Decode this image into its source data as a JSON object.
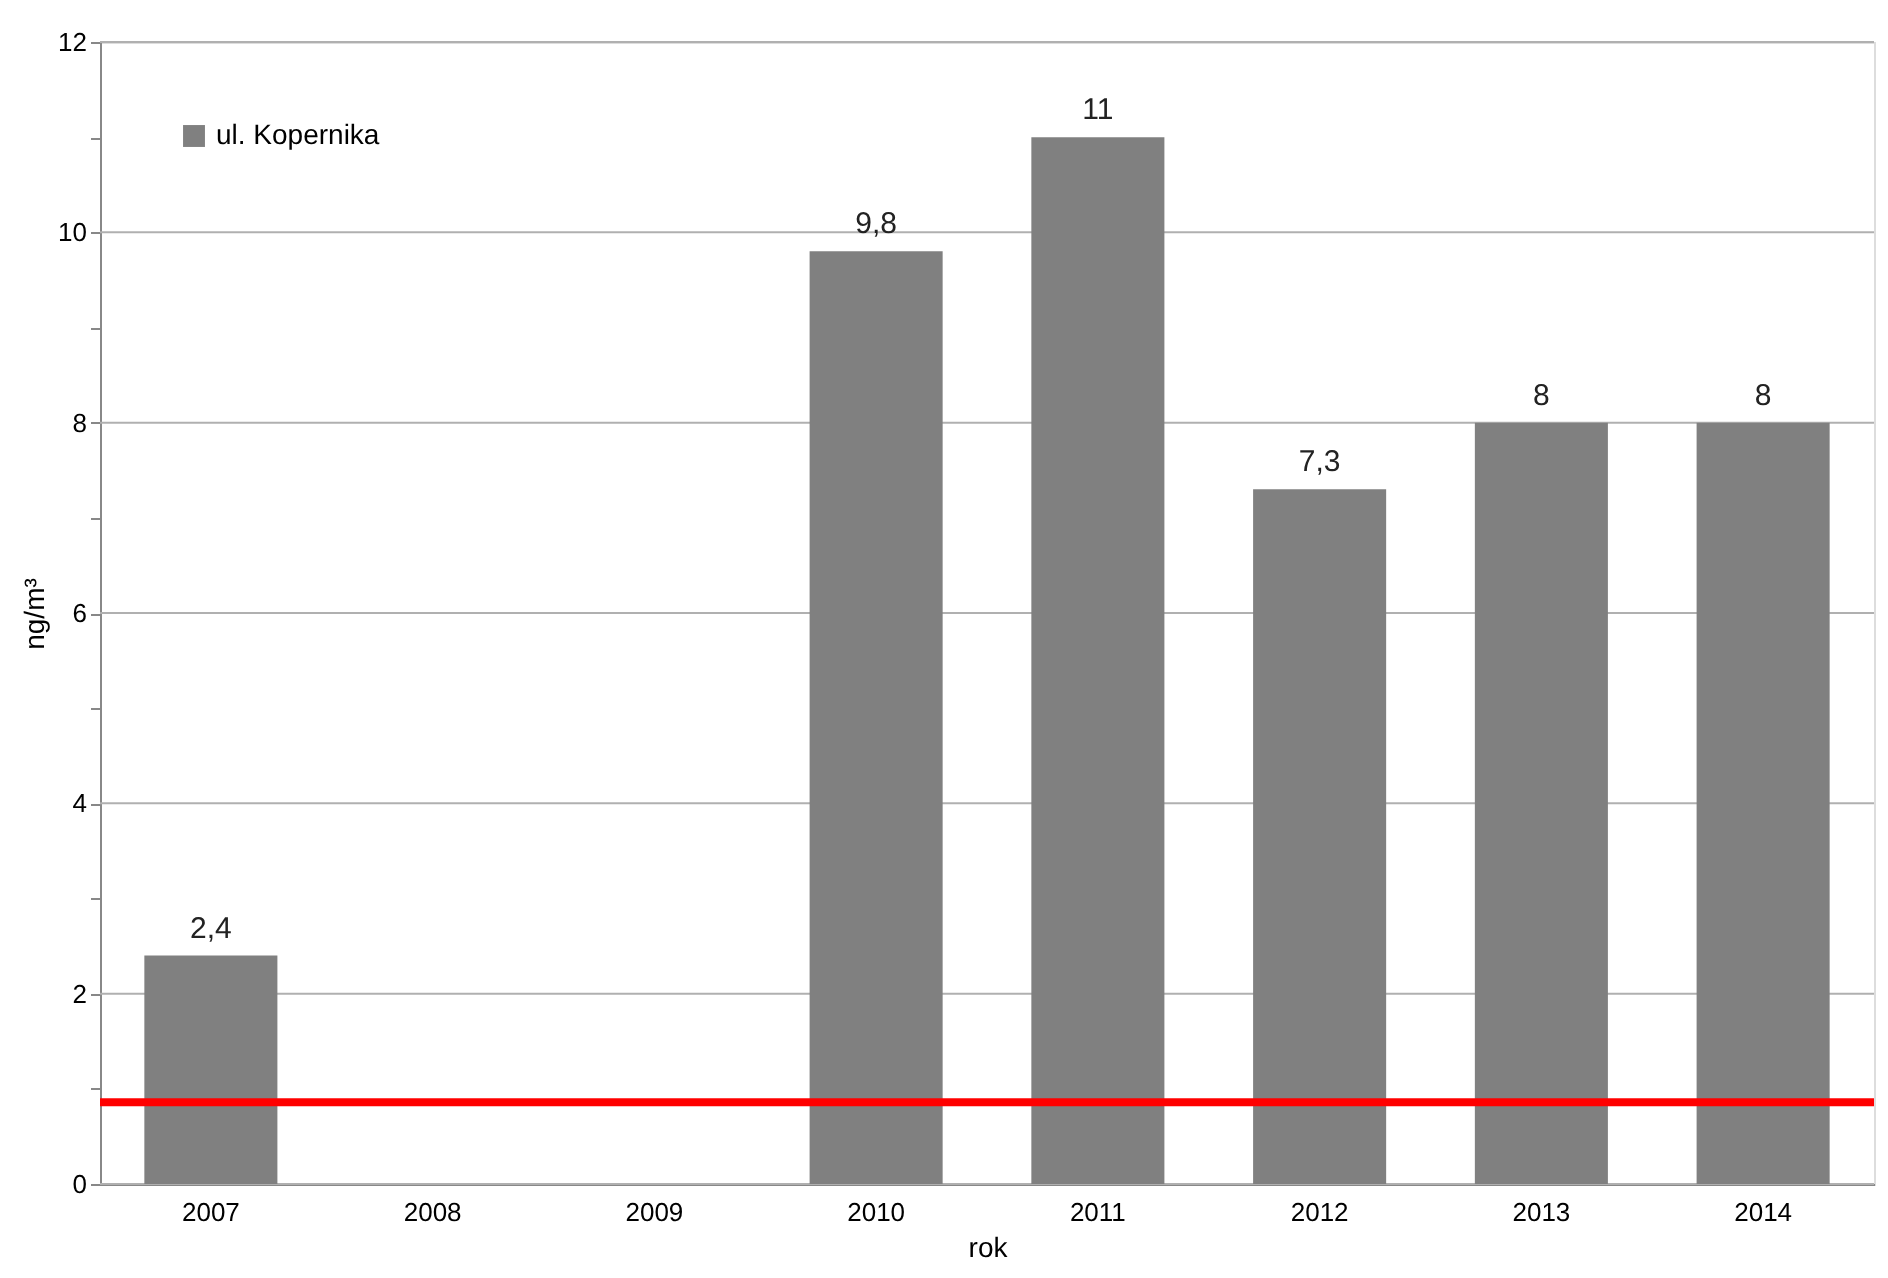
{
  "chart_data": {
    "type": "bar",
    "xlabel": "rok",
    "ylabel": "ng/m³",
    "categories": [
      "2007",
      "2008",
      "2009",
      "2010",
      "2011",
      "2012",
      "2013",
      "2014"
    ],
    "series": [
      {
        "name": "ul. Kopernika",
        "color": "#808080",
        "values": [
          2.4,
          null,
          null,
          9.8,
          11,
          7.3,
          8,
          8
        ],
        "value_labels": [
          "2,4",
          null,
          null,
          "9,8",
          "11",
          "7,3",
          "8",
          "8"
        ]
      }
    ],
    "ylim": [
      0,
      12
    ],
    "yticks": [
      0,
      {
        "value": 1,
        "label": null
      },
      2,
      {
        "value": 3,
        "label": null
      },
      4,
      {
        "value": 5,
        "label": null
      },
      6,
      {
        "value": 7,
        "label": null
      },
      8,
      {
        "value": 9,
        "label": null
      },
      10,
      {
        "value": 11,
        "label": null
      },
      12
    ],
    "grid": "y",
    "legend": "top left",
    "ref_lines": [
      {
        "axis": "y",
        "value": 0.86,
        "color": "#ff0000"
      }
    ]
  }
}
